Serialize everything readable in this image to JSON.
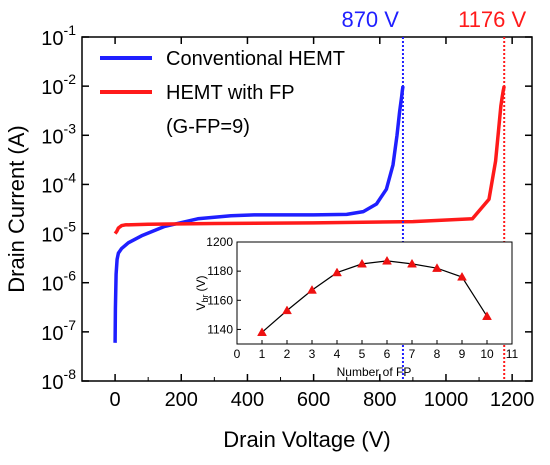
{
  "chart_data": [
    {
      "type": "line",
      "xlabel": "Drain Voltage (V)",
      "ylabel": "Drain Current (A)",
      "xlim": [
        -100,
        1260
      ],
      "ylim_log10": [
        -8,
        -1
      ],
      "y_scale": "log",
      "x_ticks": [
        0,
        200,
        400,
        600,
        800,
        1000,
        1200
      ],
      "y_ticks": [
        {
          "base": "10",
          "exp": "-1",
          "value": 0.1
        },
        {
          "base": "10",
          "exp": "-2",
          "value": 0.01
        },
        {
          "base": "10",
          "exp": "-3",
          "value": 0.001
        },
        {
          "base": "10",
          "exp": "-4",
          "value": 0.0001
        },
        {
          "base": "10",
          "exp": "-5",
          "value": 1e-05
        },
        {
          "base": "10",
          "exp": "-6",
          "value": 1e-06
        },
        {
          "base": "10",
          "exp": "-7",
          "value": 1e-07
        },
        {
          "base": "10",
          "exp": "-8",
          "value": 1e-08
        }
      ],
      "legend_position": "top-left",
      "series": [
        {
          "name": "Conventional HEMT",
          "color": "#1f1fff",
          "x": [
            0,
            1,
            3,
            6,
            10,
            20,
            40,
            80,
            150,
            250,
            350,
            420,
            500,
            600,
            700,
            750,
            790,
            820,
            840,
            852,
            860,
            866,
            868,
            870
          ],
          "y": [
            6e-08,
            3e-07,
            1.5e-06,
            3e-06,
            4e-06,
            5e-06,
            6.5e-06,
            9e-06,
            1.4e-05,
            2e-05,
            2.3e-05,
            2.4e-05,
            2.4e-05,
            2.4e-05,
            2.45e-05,
            2.8e-05,
            4e-05,
            8e-05,
            0.00025,
            0.001,
            0.003,
            0.006,
            0.008,
            0.01
          ]
        },
        {
          "name": "HEMT with FP",
          "color": "#ff1a1a",
          "x": [
            0,
            5,
            10,
            20,
            30,
            100,
            300,
            600,
            900,
            1080,
            1130,
            1150,
            1160,
            1166,
            1170,
            1173,
            1176
          ],
          "y": [
            1e-05,
            1.1e-05,
            1.3e-05,
            1.45e-05,
            1.5e-05,
            1.55e-05,
            1.6e-05,
            1.65e-05,
            1.75e-05,
            2e-05,
            5e-05,
            0.0003,
            0.0015,
            0.004,
            0.006,
            0.008,
            0.01
          ]
        }
      ],
      "legend_note": "(G-FP=9)",
      "annotations": [
        {
          "label": "870 V",
          "x": 870,
          "color": "#1f1fff",
          "style": "dotted vertical line"
        },
        {
          "label": "1176 V",
          "x": 1176,
          "color": "#ff1a1a",
          "style": "dotted vertical line"
        }
      ]
    },
    {
      "type": "line",
      "inset": true,
      "xlabel": "Number of FP",
      "ylabel_base": "V",
      "ylabel_sub": "br",
      "ylabel_unit": "(V)",
      "xlim": [
        0,
        11
      ],
      "ylim": [
        1130,
        1200
      ],
      "x_ticks": [
        0,
        1,
        2,
        3,
        4,
        5,
        6,
        7,
        8,
        9,
        10,
        11
      ],
      "y_ticks": [
        1140,
        1160,
        1180,
        1200
      ],
      "series": [
        {
          "marker": "triangle",
          "line_color": "#000000",
          "marker_color": "#ee1111",
          "x": [
            1,
            2,
            3,
            4,
            5,
            6,
            7,
            8,
            9,
            10
          ],
          "y": [
            1138,
            1153,
            1167,
            1179,
            1185,
            1187,
            1185,
            1182,
            1176,
            1149
          ]
        }
      ]
    }
  ]
}
